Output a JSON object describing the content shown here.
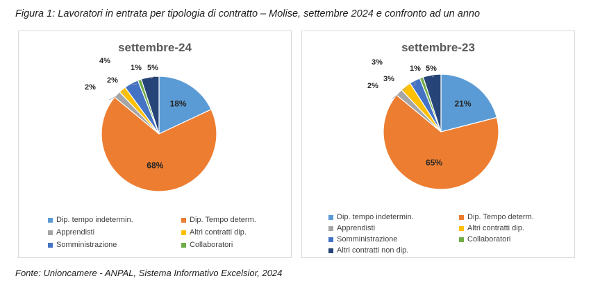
{
  "caption": "Figura 1: Lavoratori in entrata per tipologia di contratto – Molise, settembre 2024 e confronto ad un anno",
  "footer": "Fonte: Unioncamere - ANPAL, Sistema Informativo Excelsior, 2024",
  "colors": {
    "Dip. tempo indetermin.": "#5b9bd5",
    "Dip. Tempo determ.": "#ed7d31",
    "Apprendisti": "#a5a5a5",
    "Altri contratti dip.": "#ffc000",
    "Somministrazione": "#4472c4",
    "Collaboratori": "#70ad47",
    "Altri contratti non dip.": "#264478"
  },
  "chart_data": [
    {
      "type": "pie",
      "title": "settembre-24",
      "categories": [
        "Dip. tempo indetermin.",
        "Dip. Tempo determ.",
        "Apprendisti",
        "Altri contratti dip.",
        "Somministrazione",
        "Collaboratori",
        "Altri contratti non dip."
      ],
      "values": [
        18,
        68,
        2,
        2,
        4,
        1,
        5
      ],
      "labels": [
        "18%",
        "68%",
        "2%",
        "2%",
        "4%",
        "1%",
        "5%"
      ],
      "legend": [
        "Dip. tempo indetermin.",
        "Dip. Tempo determ.",
        "Apprendisti",
        "Altri contratti dip.",
        "Somministrazione",
        "Collaboratori"
      ],
      "legend_position": "bottom"
    },
    {
      "type": "pie",
      "title": "settembre-23",
      "categories": [
        "Dip. tempo indetermin.",
        "Dip. Tempo determ.",
        "Apprendisti",
        "Altri contratti dip.",
        "Somministrazione",
        "Collaboratori",
        "Altri contratti non dip."
      ],
      "values": [
        21,
        65,
        2,
        3,
        3,
        1,
        5
      ],
      "labels": [
        "21%",
        "65%",
        "2%",
        "3%",
        "3%",
        "1%",
        "5%"
      ],
      "legend": [
        "Dip. tempo indetermin.",
        "Dip. Tempo determ.",
        "Apprendisti",
        "Altri contratti dip.",
        "Somministrazione",
        "Collaboratori",
        "Altri contratti non dip."
      ],
      "legend_position": "bottom"
    }
  ]
}
